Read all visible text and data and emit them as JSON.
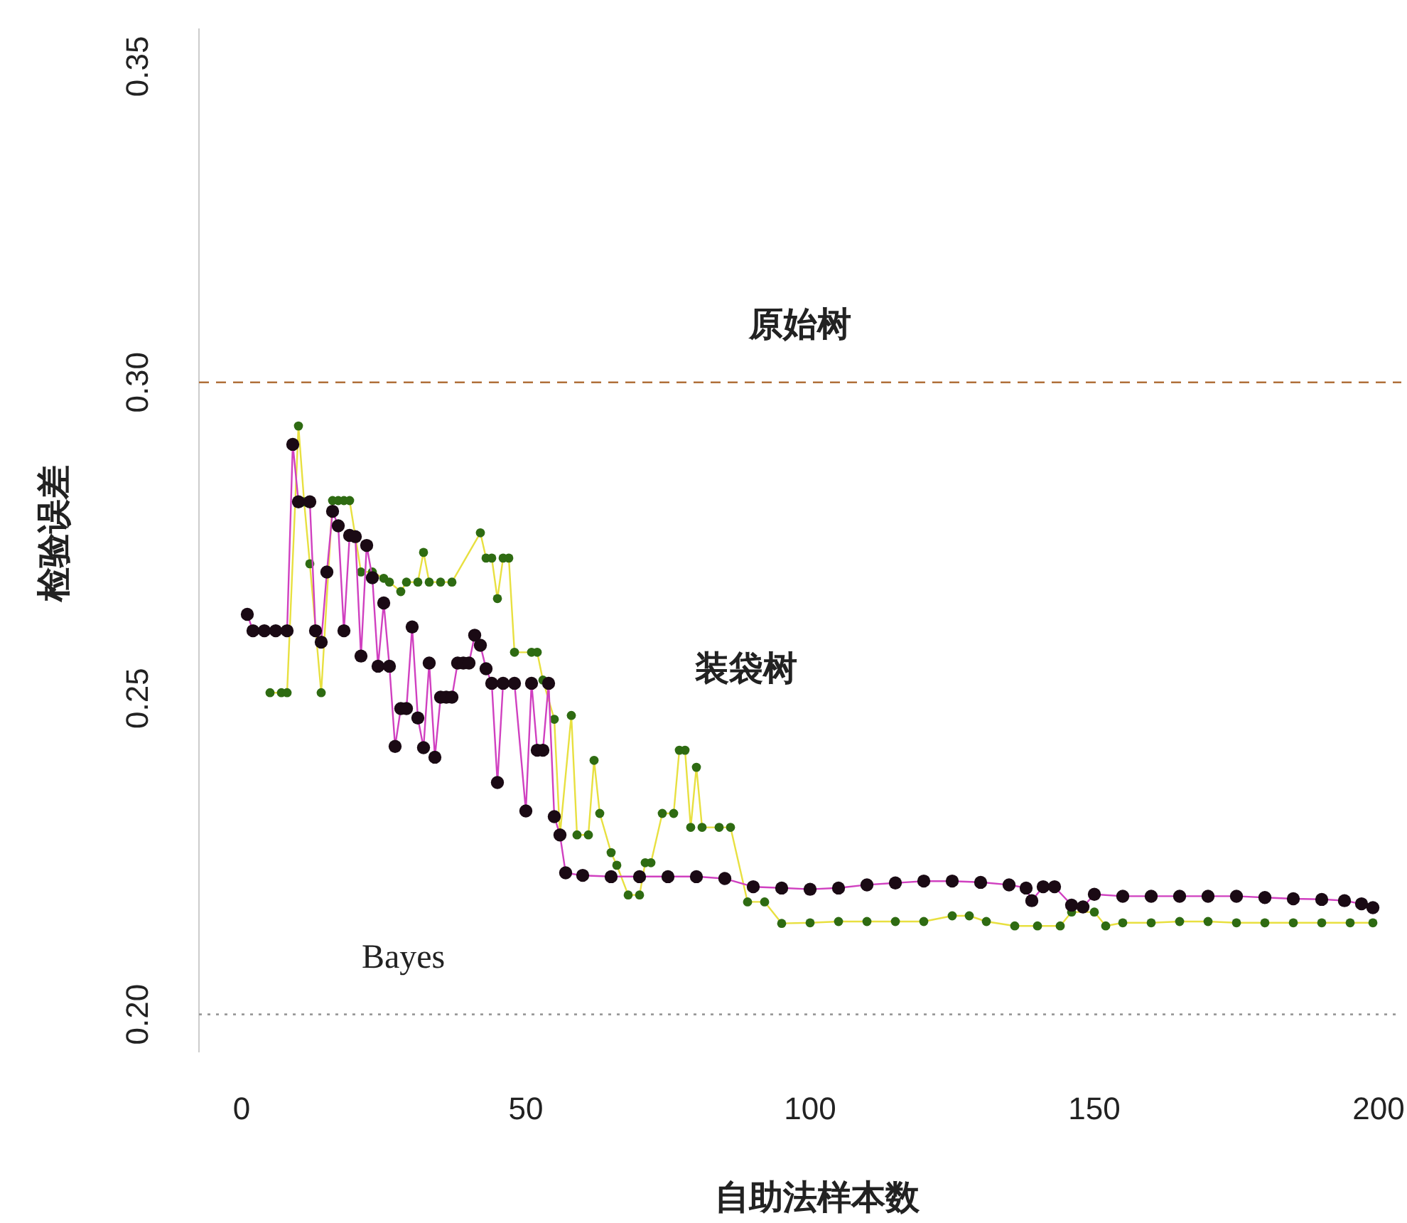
{
  "chart_data": {
    "type": "line",
    "xlabel": "自助法样本数",
    "ylabel": "检验误差",
    "xlim": [
      -7.5,
      204
    ],
    "ylim": [
      0.194,
      0.356
    ],
    "xticks": [
      0,
      50,
      100,
      150,
      200
    ],
    "yticks": [
      {
        "value": 0.2,
        "label": "0.20"
      },
      {
        "value": 0.25,
        "label": "0.25"
      },
      {
        "value": 0.3,
        "label": "0.30"
      },
      {
        "value": 0.35,
        "label": "0.35"
      }
    ],
    "grid": false,
    "marker": "circle",
    "line_style": "solid",
    "series": [
      {
        "color": "#2e6b12",
        "x": [
          5,
          7,
          8,
          10,
          11,
          12,
          14,
          16,
          17,
          18,
          19,
          21,
          23,
          25,
          26,
          28,
          29,
          31,
          32,
          33,
          35,
          37,
          42,
          43,
          44,
          45,
          46,
          47,
          48,
          51,
          52,
          53,
          55,
          56,
          58,
          59,
          61,
          62,
          63,
          65,
          66,
          68,
          70,
          71,
          72,
          74,
          76,
          77,
          78,
          79,
          80,
          81,
          84,
          86,
          89,
          92,
          95,
          100,
          105,
          110,
          115,
          120,
          125,
          128,
          131,
          136,
          140,
          144,
          146,
          150,
          152,
          155,
          160,
          165,
          170,
          175,
          180,
          185,
          190,
          195,
          199
        ],
        "values": [
          0.2509,
          0.2509,
          0.2509,
          0.2931,
          0.2811,
          0.2713,
          0.2509,
          0.2813,
          0.2813,
          0.2813,
          0.2813,
          0.27,
          0.27,
          0.269,
          0.2684,
          0.2669,
          0.2684,
          0.2684,
          0.2731,
          0.2684,
          0.2684,
          0.2684,
          0.2762,
          0.2722,
          0.2722,
          0.2658,
          0.2722,
          0.2722,
          0.2573,
          0.2573,
          0.2573,
          0.2529,
          0.2467,
          0.2284,
          0.2473,
          0.2284,
          0.2284,
          0.2402,
          0.2318,
          0.2256,
          0.2236,
          0.2189,
          0.2189,
          0.224,
          0.224,
          0.2318,
          0.2318,
          0.2418,
          0.2418,
          0.2296,
          0.2391,
          0.2296,
          0.2296,
          0.2296,
          0.2178,
          0.2178,
          0.2144,
          0.2145,
          0.2147,
          0.2147,
          0.2147,
          0.2147,
          0.2156,
          0.2156,
          0.2147,
          0.214,
          0.214,
          0.214,
          0.2162,
          0.2162,
          0.214,
          0.2145,
          0.2145,
          0.2147,
          0.2147,
          0.2145,
          0.2145,
          0.2145,
          0.2145,
          0.2145,
          0.2145
        ]
      },
      {
        "color": "#1a0a14",
        "x": [
          1,
          2,
          4,
          6,
          8,
          9,
          10,
          12,
          13,
          14,
          15,
          16,
          17,
          18,
          19,
          20,
          21,
          22,
          23,
          24,
          25,
          26,
          27,
          28,
          29,
          30,
          31,
          32,
          33,
          34,
          35,
          36,
          37,
          38,
          39,
          40,
          41,
          42,
          43,
          44,
          45,
          46,
          48,
          50,
          51,
          52,
          53,
          54,
          55,
          56,
          57,
          60,
          65,
          70,
          75,
          80,
          85,
          90,
          95,
          100,
          105,
          110,
          115,
          120,
          125,
          130,
          135,
          138,
          139,
          141,
          143,
          146,
          148,
          150,
          155,
          160,
          165,
          170,
          175,
          180,
          185,
          190,
          194,
          197,
          199
        ],
        "values": [
          0.2633,
          0.2607,
          0.2607,
          0.2607,
          0.2607,
          0.2902,
          0.2811,
          0.2811,
          0.2607,
          0.2589,
          0.27,
          0.2796,
          0.2773,
          0.2607,
          0.2758,
          0.2756,
          0.2567,
          0.2742,
          0.2691,
          0.2551,
          0.2651,
          0.2551,
          0.2424,
          0.2484,
          0.2484,
          0.2613,
          0.2469,
          0.2422,
          0.2556,
          0.2407,
          0.2502,
          0.2502,
          0.2502,
          0.2556,
          0.2556,
          0.2556,
          0.26,
          0.2584,
          0.2547,
          0.2524,
          0.2367,
          0.2524,
          0.2524,
          0.2322,
          0.2524,
          0.2418,
          0.2418,
          0.2524,
          0.2313,
          0.2284,
          0.2224,
          0.222,
          0.2218,
          0.2218,
          0.2218,
          0.2218,
          0.2215,
          0.2202,
          0.22,
          0.2198,
          0.22,
          0.2205,
          0.2208,
          0.2211,
          0.2211,
          0.2209,
          0.2205,
          0.22,
          0.218,
          0.2202,
          0.2202,
          0.2173,
          0.217,
          0.219,
          0.2187,
          0.2187,
          0.2187,
          0.2187,
          0.2187,
          0.2185,
          0.2183,
          0.2182,
          0.218,
          0.2175,
          0.2169
        ]
      }
    ],
    "ref_lines": [
      {
        "axis": "y",
        "value": 0.3,
        "label": "原始树",
        "color": "#b0703a",
        "line_style": "dashed"
      },
      {
        "axis": "y",
        "value": 0.2,
        "label": "Bayes",
        "color": "#999999",
        "line_style": "dotted"
      }
    ],
    "annotations": [
      "装袋树"
    ]
  }
}
